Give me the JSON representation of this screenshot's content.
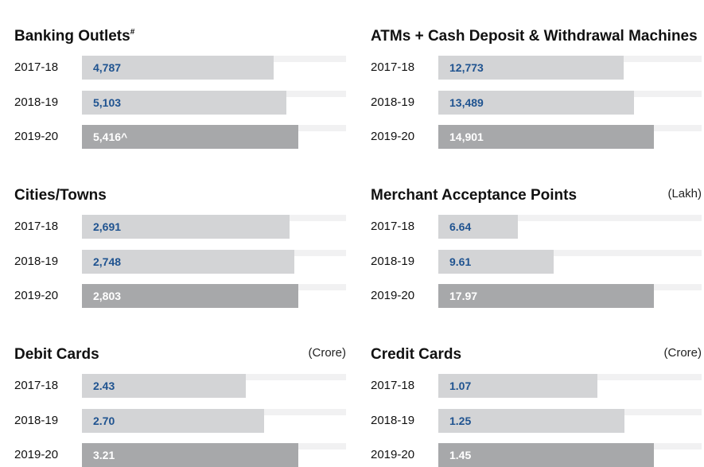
{
  "chart_data": [
    {
      "type": "hbar",
      "title": "Banking Outlets",
      "title_mark": "#",
      "categories": [
        "2017-18",
        "2018-19",
        "2019-20"
      ],
      "values": [
        4787,
        5103,
        5416
      ],
      "value_labels": [
        "4,787",
        "5,103",
        "5,416^"
      ],
      "colors": [
        "#d3d4d6",
        "#d3d4d6",
        "#a7a8aa"
      ],
      "label_colors": [
        "#1f5390",
        "#1f5390",
        "#ffffff"
      ]
    },
    {
      "type": "hbar",
      "title": "ATMs + Cash Deposit & Withdrawal Machines",
      "categories": [
        "2017-18",
        "2018-19",
        "2019-20"
      ],
      "values": [
        12773,
        13489,
        14901
      ],
      "value_labels": [
        "12,773",
        "13,489",
        "14,901"
      ],
      "colors": [
        "#d3d4d6",
        "#d3d4d6",
        "#a7a8aa"
      ],
      "label_colors": [
        "#1f5390",
        "#1f5390",
        "#ffffff"
      ]
    },
    {
      "type": "hbar",
      "title": "Cities/Towns",
      "categories": [
        "2017-18",
        "2018-19",
        "2019-20"
      ],
      "values": [
        2691,
        2748,
        2803
      ],
      "value_labels": [
        "2,691",
        "2,748",
        "2,803"
      ],
      "colors": [
        "#d3d4d6",
        "#d3d4d6",
        "#a7a8aa"
      ],
      "label_colors": [
        "#1f5390",
        "#1f5390",
        "#ffffff"
      ]
    },
    {
      "type": "hbar",
      "title": "Merchant Acceptance Points",
      "unit": "(Lakh)",
      "categories": [
        "2017-18",
        "2018-19",
        "2019-20"
      ],
      "values": [
        6.64,
        9.61,
        17.97
      ],
      "value_labels": [
        "6.64",
        "9.61",
        "17.97"
      ],
      "colors": [
        "#d3d4d6",
        "#d3d4d6",
        "#a7a8aa"
      ],
      "label_colors": [
        "#1f5390",
        "#1f5390",
        "#ffffff"
      ]
    },
    {
      "type": "hbar",
      "title": "Debit Cards",
      "unit": "(Crore)",
      "categories": [
        "2017-18",
        "2018-19",
        "2019-20"
      ],
      "values": [
        2.43,
        2.7,
        3.21
      ],
      "value_labels": [
        "2.43",
        "2.70",
        "3.21"
      ],
      "colors": [
        "#d3d4d6",
        "#d3d4d6",
        "#a7a8aa"
      ],
      "label_colors": [
        "#1f5390",
        "#1f5390",
        "#ffffff"
      ]
    },
    {
      "type": "hbar",
      "title": "Credit Cards",
      "unit": "(Crore)",
      "categories": [
        "2017-18",
        "2018-19",
        "2019-20"
      ],
      "values": [
        1.07,
        1.25,
        1.45
      ],
      "value_labels": [
        "1.07",
        "1.25",
        "1.45"
      ],
      "colors": [
        "#d3d4d6",
        "#d3d4d6",
        "#a7a8aa"
      ],
      "label_colors": [
        "#1f5390",
        "#1f5390",
        "#ffffff"
      ]
    }
  ]
}
